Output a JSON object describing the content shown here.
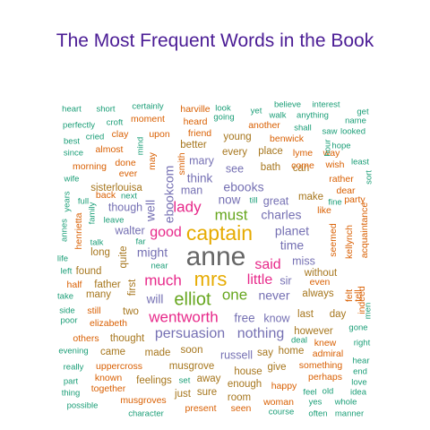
{
  "chart_data": {
    "type": "wordcloud",
    "title": "The Most Frequent Words in the Book",
    "palette": {
      "teal": "#1b9e77",
      "orange": "#d95f02",
      "slate": "#7570b3",
      "magenta": "#e7298a",
      "green": "#66a61e",
      "gold": "#e6ab02",
      "brown": "#a6761d",
      "gray": "#666666"
    },
    "words": [
      {
        "text": "anne",
        "color": "gray",
        "weight": 10
      },
      {
        "text": "captain",
        "color": "gold",
        "weight": 8
      },
      {
        "text": "mrs",
        "color": "gold",
        "weight": 7.5
      },
      {
        "text": "elliot",
        "color": "green",
        "weight": 7
      },
      {
        "text": "lady",
        "color": "magenta",
        "weight": 6
      },
      {
        "text": "wentworth",
        "color": "magenta",
        "weight": 6
      },
      {
        "text": "much",
        "color": "magenta",
        "weight": 6
      },
      {
        "text": "must",
        "color": "green",
        "weight": 6
      },
      {
        "text": "one",
        "color": "green",
        "weight": 6
      },
      {
        "text": "good",
        "color": "magenta",
        "weight": 5.5
      },
      {
        "text": "said",
        "color": "magenta",
        "weight": 5.5
      },
      {
        "text": "little",
        "color": "magenta",
        "weight": 5.5
      },
      {
        "text": "persuasion",
        "color": "slate",
        "weight": 5.5
      },
      {
        "text": "nothing",
        "color": "slate",
        "weight": 5.5
      },
      {
        "text": "charles",
        "color": "slate",
        "weight": 5
      },
      {
        "text": "planet",
        "color": "slate",
        "weight": 5
      },
      {
        "text": "time",
        "color": "slate",
        "weight": 5
      },
      {
        "text": "never",
        "color": "slate",
        "weight": 5
      },
      {
        "text": "ebookcom",
        "color": "slate",
        "weight": 5
      },
      {
        "text": "ebooks",
        "color": "slate",
        "weight": 5
      },
      {
        "text": "might",
        "color": "slate",
        "weight": 5
      },
      {
        "text": "well",
        "color": "slate",
        "weight": 5
      },
      {
        "text": "think",
        "color": "slate",
        "weight": 4.5
      },
      {
        "text": "now",
        "color": "slate",
        "weight": 4.5
      },
      {
        "text": "free",
        "color": "slate",
        "weight": 4.5
      },
      {
        "text": "will",
        "color": "slate",
        "weight": 4.5
      },
      {
        "text": "know",
        "color": "slate",
        "weight": 4
      },
      {
        "text": "sir",
        "color": "slate",
        "weight": 4
      },
      {
        "text": "miss",
        "color": "slate",
        "weight": 4
      },
      {
        "text": "great",
        "color": "slate",
        "weight": 4
      },
      {
        "text": "walter",
        "color": "slate",
        "weight": 4
      },
      {
        "text": "though",
        "color": "slate",
        "weight": 4
      },
      {
        "text": "russell",
        "color": "slate",
        "weight": 4
      },
      {
        "text": "man",
        "color": "slate",
        "weight": 4
      },
      {
        "text": "see",
        "color": "slate",
        "weight": 4
      },
      {
        "text": "mary",
        "color": "slate",
        "weight": 4
      },
      {
        "text": "musgrove",
        "color": "brown",
        "weight": 3.5
      },
      {
        "text": "bath",
        "color": "brown",
        "weight": 3.5
      },
      {
        "text": "always",
        "color": "brown",
        "weight": 3.5
      },
      {
        "text": "last",
        "color": "brown",
        "weight": 3.5
      },
      {
        "text": "day",
        "color": "brown",
        "weight": 3.5
      },
      {
        "text": "place",
        "color": "brown",
        "weight": 3.5
      },
      {
        "text": "young",
        "color": "brown",
        "weight": 3.5
      },
      {
        "text": "house",
        "color": "brown",
        "weight": 3.5
      },
      {
        "text": "say",
        "color": "brown",
        "weight": 3.5
      },
      {
        "text": "soon",
        "color": "brown",
        "weight": 3.5
      },
      {
        "text": "without",
        "color": "brown",
        "weight": 3.5
      },
      {
        "text": "every",
        "color": "brown",
        "weight": 3.5
      },
      {
        "text": "first",
        "color": "brown",
        "weight": 3.5
      },
      {
        "text": "two",
        "color": "brown",
        "weight": 3.5
      },
      {
        "text": "quite",
        "color": "brown",
        "weight": 3.5
      },
      {
        "text": "however",
        "color": "brown",
        "weight": 3.5
      },
      {
        "text": "can",
        "color": "brown",
        "weight": 3.5
      },
      {
        "text": "make",
        "color": "brown",
        "weight": 3.5
      },
      {
        "text": "better",
        "color": "brown",
        "weight": 3.5
      },
      {
        "text": "enough",
        "color": "brown",
        "weight": 3.5
      },
      {
        "text": "room",
        "color": "brown",
        "weight": 3.5
      },
      {
        "text": "thought",
        "color": "brown",
        "weight": 3.5
      },
      {
        "text": "long",
        "color": "brown",
        "weight": 3.5
      },
      {
        "text": "found",
        "color": "brown",
        "weight": 3.5
      },
      {
        "text": "many",
        "color": "brown",
        "weight": 3.5
      },
      {
        "text": "sisterlouisa",
        "color": "brown",
        "weight": 3.5
      },
      {
        "text": "father",
        "color": "brown",
        "weight": 3.5
      },
      {
        "text": "home",
        "color": "brown",
        "weight": 3.5
      },
      {
        "text": "came",
        "color": "brown",
        "weight": 3.5
      },
      {
        "text": "made",
        "color": "brown",
        "weight": 3.5
      },
      {
        "text": "feelings",
        "color": "brown",
        "weight": 3.5
      },
      {
        "text": "sure",
        "color": "brown",
        "weight": 3.5
      },
      {
        "text": "away",
        "color": "brown",
        "weight": 3.5
      },
      {
        "text": "just",
        "color": "brown",
        "weight": 3.5
      },
      {
        "text": "give",
        "color": "brown",
        "weight": 3.5
      },
      {
        "text": "uppercross",
        "color": "orange",
        "weight": 3
      },
      {
        "text": "friend",
        "color": "orange",
        "weight": 3
      },
      {
        "text": "upon",
        "color": "orange",
        "weight": 3
      },
      {
        "text": "clay",
        "color": "orange",
        "weight": 3
      },
      {
        "text": "almost",
        "color": "orange",
        "weight": 3
      },
      {
        "text": "done",
        "color": "orange",
        "weight": 3
      },
      {
        "text": "ever",
        "color": "orange",
        "weight": 3
      },
      {
        "text": "back",
        "color": "orange",
        "weight": 3
      },
      {
        "text": "may",
        "color": "orange",
        "weight": 3
      },
      {
        "text": "heard",
        "color": "orange",
        "weight": 3
      },
      {
        "text": "moment",
        "color": "orange",
        "weight": 3
      },
      {
        "text": "harville",
        "color": "orange",
        "weight": 3
      },
      {
        "text": "another",
        "color": "orange",
        "weight": 3
      },
      {
        "text": "benwick",
        "color": "orange",
        "weight": 3
      },
      {
        "text": "lyme",
        "color": "orange",
        "weight": 3
      },
      {
        "text": "come",
        "color": "orange",
        "weight": 3
      },
      {
        "text": "way",
        "color": "orange",
        "weight": 3
      },
      {
        "text": "wish",
        "color": "orange",
        "weight": 3
      },
      {
        "text": "rather",
        "color": "orange",
        "weight": 3
      },
      {
        "text": "dear",
        "color": "orange",
        "weight": 3
      },
      {
        "text": "like",
        "color": "orange",
        "weight": 3
      },
      {
        "text": "seemed",
        "color": "orange",
        "weight": 3
      },
      {
        "text": "kellynch",
        "color": "orange",
        "weight": 3
      },
      {
        "text": "acquaintance",
        "color": "orange",
        "weight": 3
      },
      {
        "text": "party",
        "color": "orange",
        "weight": 3
      },
      {
        "text": "even",
        "color": "orange",
        "weight": 3
      },
      {
        "text": "felt",
        "color": "orange",
        "weight": 3
      },
      {
        "text": "tell",
        "color": "orange",
        "weight": 3
      },
      {
        "text": "indeed",
        "color": "orange",
        "weight": 3
      },
      {
        "text": "knew",
        "color": "orange",
        "weight": 3
      },
      {
        "text": "admiral",
        "color": "orange",
        "weight": 3
      },
      {
        "text": "something",
        "color": "orange",
        "weight": 3
      },
      {
        "text": "perhaps",
        "color": "orange",
        "weight": 3
      },
      {
        "text": "happy",
        "color": "orange",
        "weight": 3
      },
      {
        "text": "woman",
        "color": "orange",
        "weight": 3
      },
      {
        "text": "seen",
        "color": "orange",
        "weight": 3
      },
      {
        "text": "present",
        "color": "orange",
        "weight": 3
      },
      {
        "text": "musgroves",
        "color": "orange",
        "weight": 3
      },
      {
        "text": "known",
        "color": "orange",
        "weight": 3
      },
      {
        "text": "together",
        "color": "orange",
        "weight": 3
      },
      {
        "text": "others",
        "color": "orange",
        "weight": 3
      },
      {
        "text": "elizabeth",
        "color": "orange",
        "weight": 3
      },
      {
        "text": "still",
        "color": "orange",
        "weight": 3
      },
      {
        "text": "half",
        "color": "orange",
        "weight": 3
      },
      {
        "text": "henrietta",
        "color": "orange",
        "weight": 3
      },
      {
        "text": "smith",
        "color": "orange",
        "weight": 3
      },
      {
        "text": "morning",
        "color": "orange",
        "weight": 3
      },
      {
        "text": "going",
        "color": "teal",
        "weight": 2.5
      },
      {
        "text": "look",
        "color": "teal",
        "weight": 2.5
      },
      {
        "text": "yet",
        "color": "teal",
        "weight": 2.5
      },
      {
        "text": "believe",
        "color": "teal",
        "weight": 2.5
      },
      {
        "text": "interest",
        "color": "teal",
        "weight": 2.5
      },
      {
        "text": "walk",
        "color": "teal",
        "weight": 2.5
      },
      {
        "text": "anything",
        "color": "teal",
        "weight": 2.5
      },
      {
        "text": "get",
        "color": "teal",
        "weight": 2.5
      },
      {
        "text": "name",
        "color": "teal",
        "weight": 2.5
      },
      {
        "text": "saw",
        "color": "teal",
        "weight": 2.5
      },
      {
        "text": "looked",
        "color": "teal",
        "weight": 2.5
      },
      {
        "text": "shall",
        "color": "teal",
        "weight": 2.5
      },
      {
        "text": "hour",
        "color": "teal",
        "weight": 2.5
      },
      {
        "text": "hope",
        "color": "teal",
        "weight": 2.5
      },
      {
        "text": "least",
        "color": "teal",
        "weight": 2.5
      },
      {
        "text": "sort",
        "color": "teal",
        "weight": 2.5
      },
      {
        "text": "fine",
        "color": "teal",
        "weight": 2.5
      },
      {
        "text": "till",
        "color": "teal",
        "weight": 2.5
      },
      {
        "text": "heart",
        "color": "teal",
        "weight": 2.5
      },
      {
        "text": "short",
        "color": "teal",
        "weight": 2.5
      },
      {
        "text": "certainly",
        "color": "teal",
        "weight": 2.5
      },
      {
        "text": "perfectly",
        "color": "teal",
        "weight": 2.5
      },
      {
        "text": "croft",
        "color": "teal",
        "weight": 2.5
      },
      {
        "text": "cried",
        "color": "teal",
        "weight": 2.5
      },
      {
        "text": "best",
        "color": "teal",
        "weight": 2.5
      },
      {
        "text": "since",
        "color": "teal",
        "weight": 2.5
      },
      {
        "text": "mind",
        "color": "teal",
        "weight": 2.5
      },
      {
        "text": "wife",
        "color": "teal",
        "weight": 2.5
      },
      {
        "text": "full",
        "color": "teal",
        "weight": 2.5
      },
      {
        "text": "next",
        "color": "teal",
        "weight": 2.5
      },
      {
        "text": "years",
        "color": "teal",
        "weight": 2.5
      },
      {
        "text": "family",
        "color": "teal",
        "weight": 2.5
      },
      {
        "text": "leave",
        "color": "teal",
        "weight": 2.5
      },
      {
        "text": "annes",
        "color": "teal",
        "weight": 2.5
      },
      {
        "text": "talk",
        "color": "teal",
        "weight": 2.5
      },
      {
        "text": "far",
        "color": "teal",
        "weight": 2.5
      },
      {
        "text": "life",
        "color": "teal",
        "weight": 2.5
      },
      {
        "text": "near",
        "color": "teal",
        "weight": 2.5
      },
      {
        "text": "left",
        "color": "teal",
        "weight": 2.5
      },
      {
        "text": "take",
        "color": "teal",
        "weight": 2.5
      },
      {
        "text": "side",
        "color": "teal",
        "weight": 2.5
      },
      {
        "text": "poor",
        "color": "teal",
        "weight": 2.5
      },
      {
        "text": "evening",
        "color": "teal",
        "weight": 2.5
      },
      {
        "text": "really",
        "color": "teal",
        "weight": 2.5
      },
      {
        "text": "part",
        "color": "teal",
        "weight": 2.5
      },
      {
        "text": "thing",
        "color": "teal",
        "weight": 2.5
      },
      {
        "text": "possible",
        "color": "teal",
        "weight": 2.5
      },
      {
        "text": "character",
        "color": "teal",
        "weight": 2.5
      },
      {
        "text": "set",
        "color": "teal",
        "weight": 2.5
      },
      {
        "text": "course",
        "color": "teal",
        "weight": 2.5
      },
      {
        "text": "often",
        "color": "teal",
        "weight": 2.5
      },
      {
        "text": "feel",
        "color": "teal",
        "weight": 2.5
      },
      {
        "text": "old",
        "color": "teal",
        "weight": 2.5
      },
      {
        "text": "yes",
        "color": "teal",
        "weight": 2.5
      },
      {
        "text": "whole",
        "color": "teal",
        "weight": 2.5
      },
      {
        "text": "manner",
        "color": "teal",
        "weight": 2.5
      },
      {
        "text": "idea",
        "color": "teal",
        "weight": 2.5
      },
      {
        "text": "love",
        "color": "teal",
        "weight": 2.5
      },
      {
        "text": "end",
        "color": "teal",
        "weight": 2.5
      },
      {
        "text": "hear",
        "color": "teal",
        "weight": 2.5
      },
      {
        "text": "deal",
        "color": "teal",
        "weight": 2.5
      },
      {
        "text": "right",
        "color": "teal",
        "weight": 2.5
      },
      {
        "text": "gone",
        "color": "teal",
        "weight": 2.5
      },
      {
        "text": "men",
        "color": "teal",
        "weight": 2.5
      }
    ]
  }
}
